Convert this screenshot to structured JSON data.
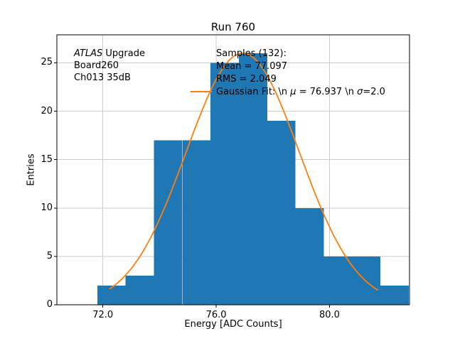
{
  "chart_data": {
    "type": "histogram",
    "title": "Run 760",
    "xlabel": "Energy [ADC Counts]",
    "ylabel": "Entries",
    "bin_edges": [
      71.8,
      72.8,
      73.8,
      74.8,
      75.8,
      76.8,
      77.8,
      78.8,
      79.8,
      80.8,
      81.8,
      82.8
    ],
    "counts": [
      2,
      3,
      17,
      17,
      25,
      26,
      19,
      10,
      5,
      5,
      2
    ],
    "xlim": [
      70.375,
      82.825
    ],
    "ylim": [
      0,
      27.9
    ],
    "x_ticks": [
      {
        "value": 72,
        "label": "72.0"
      },
      {
        "value": 76,
        "label": "76.0"
      },
      {
        "value": 80,
        "label": "80.0"
      }
    ],
    "y_ticks": [
      {
        "value": 0,
        "label": "0"
      },
      {
        "value": 5,
        "label": "5"
      },
      {
        "value": 10,
        "label": "10"
      },
      {
        "value": 15,
        "label": "15"
      },
      {
        "value": 20,
        "label": "20"
      },
      {
        "value": 25,
        "label": "25"
      }
    ],
    "grid": true,
    "grid_color": "#cccccc",
    "bar_color": "#1f77b4",
    "fit_color": "#ff7f0e",
    "gaussian_fit": {
      "amplitude": 26,
      "mu": 76.937,
      "sigma": 2.0,
      "x_start": 72.25,
      "x_end": 81.7
    },
    "stats": {
      "samples": 132,
      "mean": 77.097,
      "rms": 2.049
    },
    "annotation": {
      "italic": "ATLAS",
      "rest": " Upgrade",
      "line2": "Board260",
      "line3": "Ch013 35dB"
    },
    "legend": {
      "samples": "Samples (132):",
      "mean": "Mean = 77.097",
      "rms": "RMS = 2.049",
      "fit_pre": "Gaussian Fit: \\n ",
      "fit_mu": "μ",
      "fit_mid": " = 76.937 \\n ",
      "fit_sigma": "σ",
      "fit_post": "=2.0"
    }
  }
}
